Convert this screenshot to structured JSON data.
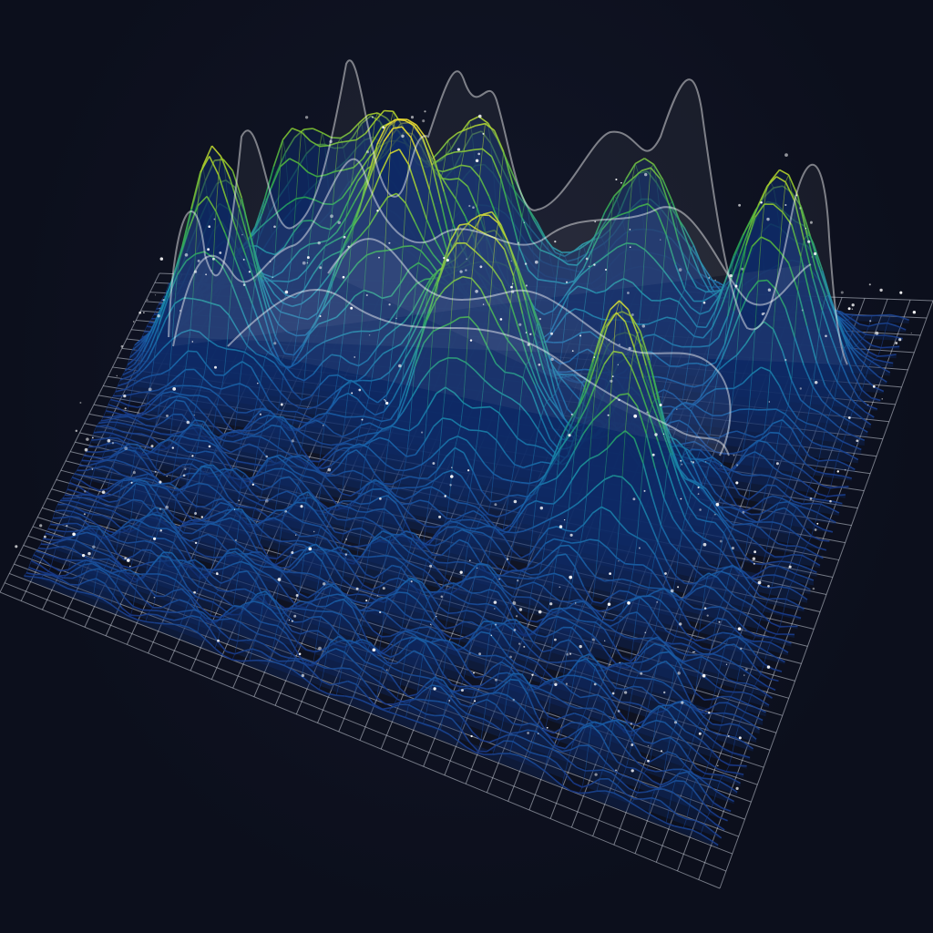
{
  "colors": {
    "background": "#0c0f1c",
    "grid": "#c8cdd8",
    "low": "#1a3a8a",
    "mid_low": "#1a7ab0",
    "mid": "#2aa84a",
    "mid_high": "#9ccc2a",
    "high": "#f0e030",
    "ridge": "#ffffff"
  }
}
